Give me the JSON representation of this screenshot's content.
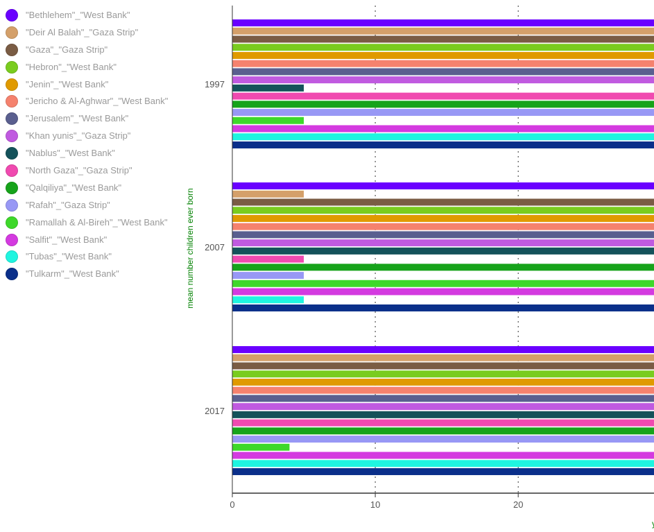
{
  "chart_data": {
    "type": "bar",
    "orientation": "horizontal",
    "categories": [
      "1997",
      "2007",
      "2017"
    ],
    "ylabel": "mean number children ever born",
    "xlabel": "y",
    "x_ticks": [
      "0",
      "10",
      "20"
    ],
    "xlim": [
      0,
      29.5
    ],
    "grid": "vertical dotted",
    "legend_position": "left",
    "series": [
      {
        "name": "\"Bethlehem\"_\"West Bank\"",
        "color": "#6a00ff",
        "values": [
          30,
          30,
          30
        ]
      },
      {
        "name": "\"Deir Al Balah\"_\"Gaza Strip\"",
        "color": "#d4a06a",
        "values": [
          30,
          5,
          30
        ]
      },
      {
        "name": "\"Gaza\"_\"Gaza Strip\"",
        "color": "#7a5c44",
        "values": [
          30,
          30,
          30
        ]
      },
      {
        "name": "\"Hebron\"_\"West Bank\"",
        "color": "#7acc1f",
        "values": [
          30,
          30,
          30
        ]
      },
      {
        "name": "\"Jenin\"_\"West Bank\"",
        "color": "#e09a00",
        "values": [
          30,
          30,
          30
        ]
      },
      {
        "name": "\"Jericho & Al-Aghwar\"_\"West Bank\"",
        "color": "#f5826e",
        "values": [
          30,
          30,
          30
        ]
      },
      {
        "name": "\"Jerusalem\"_\"West Bank\"",
        "color": "#5a5f8f",
        "values": [
          30,
          30,
          30
        ]
      },
      {
        "name": "\"Khan yunis\"_\"Gaza Strip\"",
        "color": "#c05ae0",
        "values": [
          30,
          30,
          30
        ]
      },
      {
        "name": "\"Nablus\"_\"West Bank\"",
        "color": "#14525a",
        "values": [
          5,
          30,
          30
        ]
      },
      {
        "name": "\"North Gaza\"_\"Gaza Strip\"",
        "color": "#f04ab0",
        "values": [
          30,
          5,
          30
        ]
      },
      {
        "name": "\"Qalqiliya\"_\"West Bank\"",
        "color": "#16a31a",
        "values": [
          30,
          30,
          30
        ]
      },
      {
        "name": "\"Rafah\"_\"Gaza Strip\"",
        "color": "#9898f5",
        "values": [
          30,
          5,
          30
        ]
      },
      {
        "name": "\"Ramallah & Al-Bireh\"_\"West Bank\"",
        "color": "#3ed82a",
        "values": [
          5,
          30,
          4
        ]
      },
      {
        "name": "\"Salfit\"_\"West Bank\"",
        "color": "#d43ae0",
        "values": [
          30,
          30,
          30
        ]
      },
      {
        "name": "\"Tubas\"_\"West Bank\"",
        "color": "#1ff5e0",
        "values": [
          30,
          5,
          30
        ]
      },
      {
        "name": "\"Tulkarm\"_\"West Bank\"",
        "color": "#0a2f8a",
        "values": [
          30,
          30,
          30
        ]
      }
    ]
  }
}
